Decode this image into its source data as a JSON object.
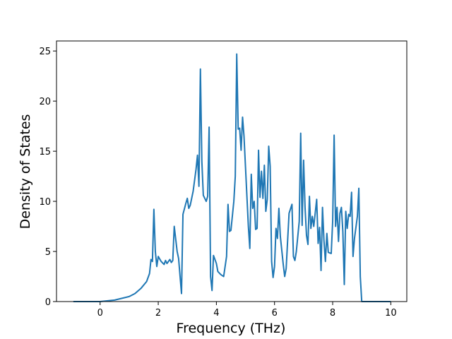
{
  "chart_data": {
    "type": "line",
    "x_label": "Frequency (THz)",
    "y_label": "Density of States",
    "xlim": [
      -1.5,
      10.55
    ],
    "ylim": [
      0,
      26
    ],
    "xticks": [
      0,
      2,
      4,
      6,
      8,
      10
    ],
    "yticks": [
      0,
      5,
      10,
      15,
      20,
      25
    ],
    "grid": false,
    "series": [
      {
        "color": "#1f77b4",
        "x": [
          -0.92,
          0,
          0.5,
          1.0,
          1.2,
          1.4,
          1.6,
          1.7,
          1.75,
          1.8,
          1.85,
          1.9,
          1.95,
          2.0,
          2.1,
          2.2,
          2.25,
          2.3,
          2.4,
          2.45,
          2.5,
          2.55,
          2.65,
          2.7,
          2.8,
          2.85,
          2.95,
          3.0,
          3.05,
          3.1,
          3.2,
          3.3,
          3.35,
          3.4,
          3.45,
          3.5,
          3.55,
          3.65,
          3.7,
          3.75,
          3.8,
          3.85,
          3.9,
          4.0,
          4.05,
          4.15,
          4.25,
          4.35,
          4.4,
          4.45,
          4.5,
          4.6,
          4.65,
          4.7,
          4.75,
          4.8,
          4.85,
          4.9,
          4.95,
          5.0,
          5.05,
          5.1,
          5.15,
          5.2,
          5.25,
          5.3,
          5.35,
          5.4,
          5.45,
          5.5,
          5.55,
          5.6,
          5.65,
          5.7,
          5.75,
          5.8,
          5.85,
          5.9,
          5.95,
          6.0,
          6.05,
          6.1,
          6.15,
          6.2,
          6.3,
          6.35,
          6.4,
          6.5,
          6.6,
          6.65,
          6.7,
          6.75,
          6.85,
          6.9,
          6.95,
          7.0,
          7.05,
          7.1,
          7.15,
          7.2,
          7.25,
          7.3,
          7.35,
          7.45,
          7.5,
          7.55,
          7.6,
          7.65,
          7.7,
          7.75,
          7.8,
          7.85,
          7.95,
          8.0,
          8.05,
          8.1,
          8.15,
          8.2,
          8.25,
          8.3,
          8.35,
          8.4,
          8.45,
          8.5,
          8.55,
          8.6,
          8.65,
          8.7,
          8.75,
          8.85,
          8.9,
          8.95,
          9.0,
          10.0
        ],
        "values": [
          0,
          0,
          0.15,
          0.5,
          0.8,
          1.3,
          2.0,
          2.8,
          4.2,
          4.0,
          9.2,
          5.0,
          3.5,
          4.5,
          4.0,
          3.7,
          4.1,
          3.8,
          4.2,
          3.9,
          4.1,
          7.5,
          5.0,
          4.3,
          0.8,
          8.7,
          9.8,
          10.3,
          9.3,
          9.6,
          11.0,
          13.2,
          14.6,
          11.5,
          23.2,
          14.0,
          10.6,
          10.0,
          10.5,
          17.4,
          2.5,
          1.1,
          4.6,
          3.8,
          3.0,
          2.7,
          2.5,
          4.5,
          9.7,
          7.0,
          7.1,
          10.0,
          12.5,
          24.7,
          17.2,
          17.3,
          15.1,
          18.4,
          16.5,
          13.5,
          10.5,
          7.5,
          5.3,
          12.7,
          9.3,
          10.0,
          7.2,
          7.3,
          15.1,
          10.4,
          13.0,
          10.3,
          13.6,
          9.0,
          10.2,
          15.5,
          13.5,
          4.0,
          2.4,
          3.5,
          7.3,
          6.3,
          9.3,
          6.5,
          3.7,
          2.5,
          3.3,
          8.8,
          9.7,
          4.5,
          4.1,
          5.0,
          8.0,
          16.8,
          7.6,
          14.1,
          9.4,
          6.6,
          5.7,
          10.5,
          7.3,
          8.5,
          7.5,
          10.2,
          5.8,
          7.4,
          3.1,
          9.4,
          6.1,
          4.0,
          6.8,
          4.9,
          4.8,
          8.0,
          16.6,
          7.5,
          9.4,
          6.0,
          8.8,
          9.4,
          7.0,
          1.7,
          9.0,
          7.3,
          8.7,
          8.5,
          10.9,
          4.5,
          6.3,
          8.5,
          11.3,
          2.5,
          0,
          0
        ]
      }
    ]
  }
}
